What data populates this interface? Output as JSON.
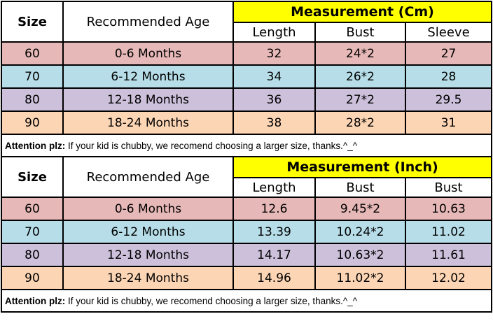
{
  "colors": {
    "header_yellow": "#FFFF00",
    "row_colors": [
      "#E6B8B7",
      "#B7DEE8",
      "#CCC0DA",
      "#FCD5B4"
    ],
    "border": "#000000",
    "text": "#000000",
    "background": "#FFFFFF"
  },
  "tables": [
    {
      "size_header": "Size",
      "age_header": "Recommended Age",
      "measurement_header": "Measurement (Cm)",
      "sub_headers": [
        "Length",
        "Bust",
        "Sleeve"
      ],
      "rows": [
        {
          "size": "60",
          "age": "0-6 Months",
          "values": [
            "32",
            "24*2",
            "27"
          ]
        },
        {
          "size": "70",
          "age": "6-12 Months",
          "values": [
            "34",
            "26*2",
            "28"
          ]
        },
        {
          "size": "80",
          "age": "12-18 Months",
          "values": [
            "36",
            "27*2",
            "29.5"
          ]
        },
        {
          "size": "90",
          "age": "18-24 Months",
          "values": [
            "38",
            "28*2",
            "31"
          ]
        }
      ],
      "attention": {
        "label": "Attention plz:",
        "text": " If your kid is chubby, we recomend choosing a larger size, thanks.^_^"
      }
    },
    {
      "size_header": "Size",
      "age_header": "Recommended Age",
      "measurement_header": "Measurement (Inch)",
      "sub_headers": [
        "Length",
        "Bust",
        "Bust"
      ],
      "rows": [
        {
          "size": "60",
          "age": "0-6 Months",
          "values": [
            "12.6",
            "9.45*2",
            "10.63"
          ]
        },
        {
          "size": "70",
          "age": "6-12 Months",
          "values": [
            "13.39",
            "10.24*2",
            "11.02"
          ]
        },
        {
          "size": "80",
          "age": "12-18 Months",
          "values": [
            "14.17",
            "10.63*2",
            "11.61"
          ]
        },
        {
          "size": "90",
          "age": "18-24 Months",
          "values": [
            "14.96",
            "11.02*2",
            "12.02"
          ]
        }
      ],
      "attention": {
        "label": "Attention plz:",
        "text": " If your kid is chubby, we recomend choosing a larger size, thanks.^_^"
      }
    }
  ],
  "chart_data": [
    {
      "type": "table",
      "title": "Measurement (Cm)",
      "columns": [
        "Size",
        "Recommended Age",
        "Length",
        "Bust",
        "Sleeve"
      ],
      "rows": [
        [
          "60",
          "0-6 Months",
          "32",
          "24*2",
          "27"
        ],
        [
          "70",
          "6-12 Months",
          "34",
          "26*2",
          "28"
        ],
        [
          "80",
          "12-18 Months",
          "36",
          "27*2",
          "29.5"
        ],
        [
          "90",
          "18-24 Months",
          "38",
          "28*2",
          "31"
        ]
      ],
      "note": "Attention plz: If your kid is chubby, we recomend choosing a larger size, thanks.^_^"
    },
    {
      "type": "table",
      "title": "Measurement (Inch)",
      "columns": [
        "Size",
        "Recommended Age",
        "Length",
        "Bust",
        "Bust"
      ],
      "rows": [
        [
          "60",
          "0-6 Months",
          "12.6",
          "9.45*2",
          "10.63"
        ],
        [
          "70",
          "6-12 Months",
          "13.39",
          "10.24*2",
          "11.02"
        ],
        [
          "80",
          "12-18 Months",
          "14.17",
          "10.63*2",
          "11.61"
        ],
        [
          "90",
          "18-24 Months",
          "14.96",
          "11.02*2",
          "12.02"
        ]
      ],
      "note": "Attention plz: If your kid is chubby, we recomend choosing a larger size, thanks.^_^"
    }
  ]
}
